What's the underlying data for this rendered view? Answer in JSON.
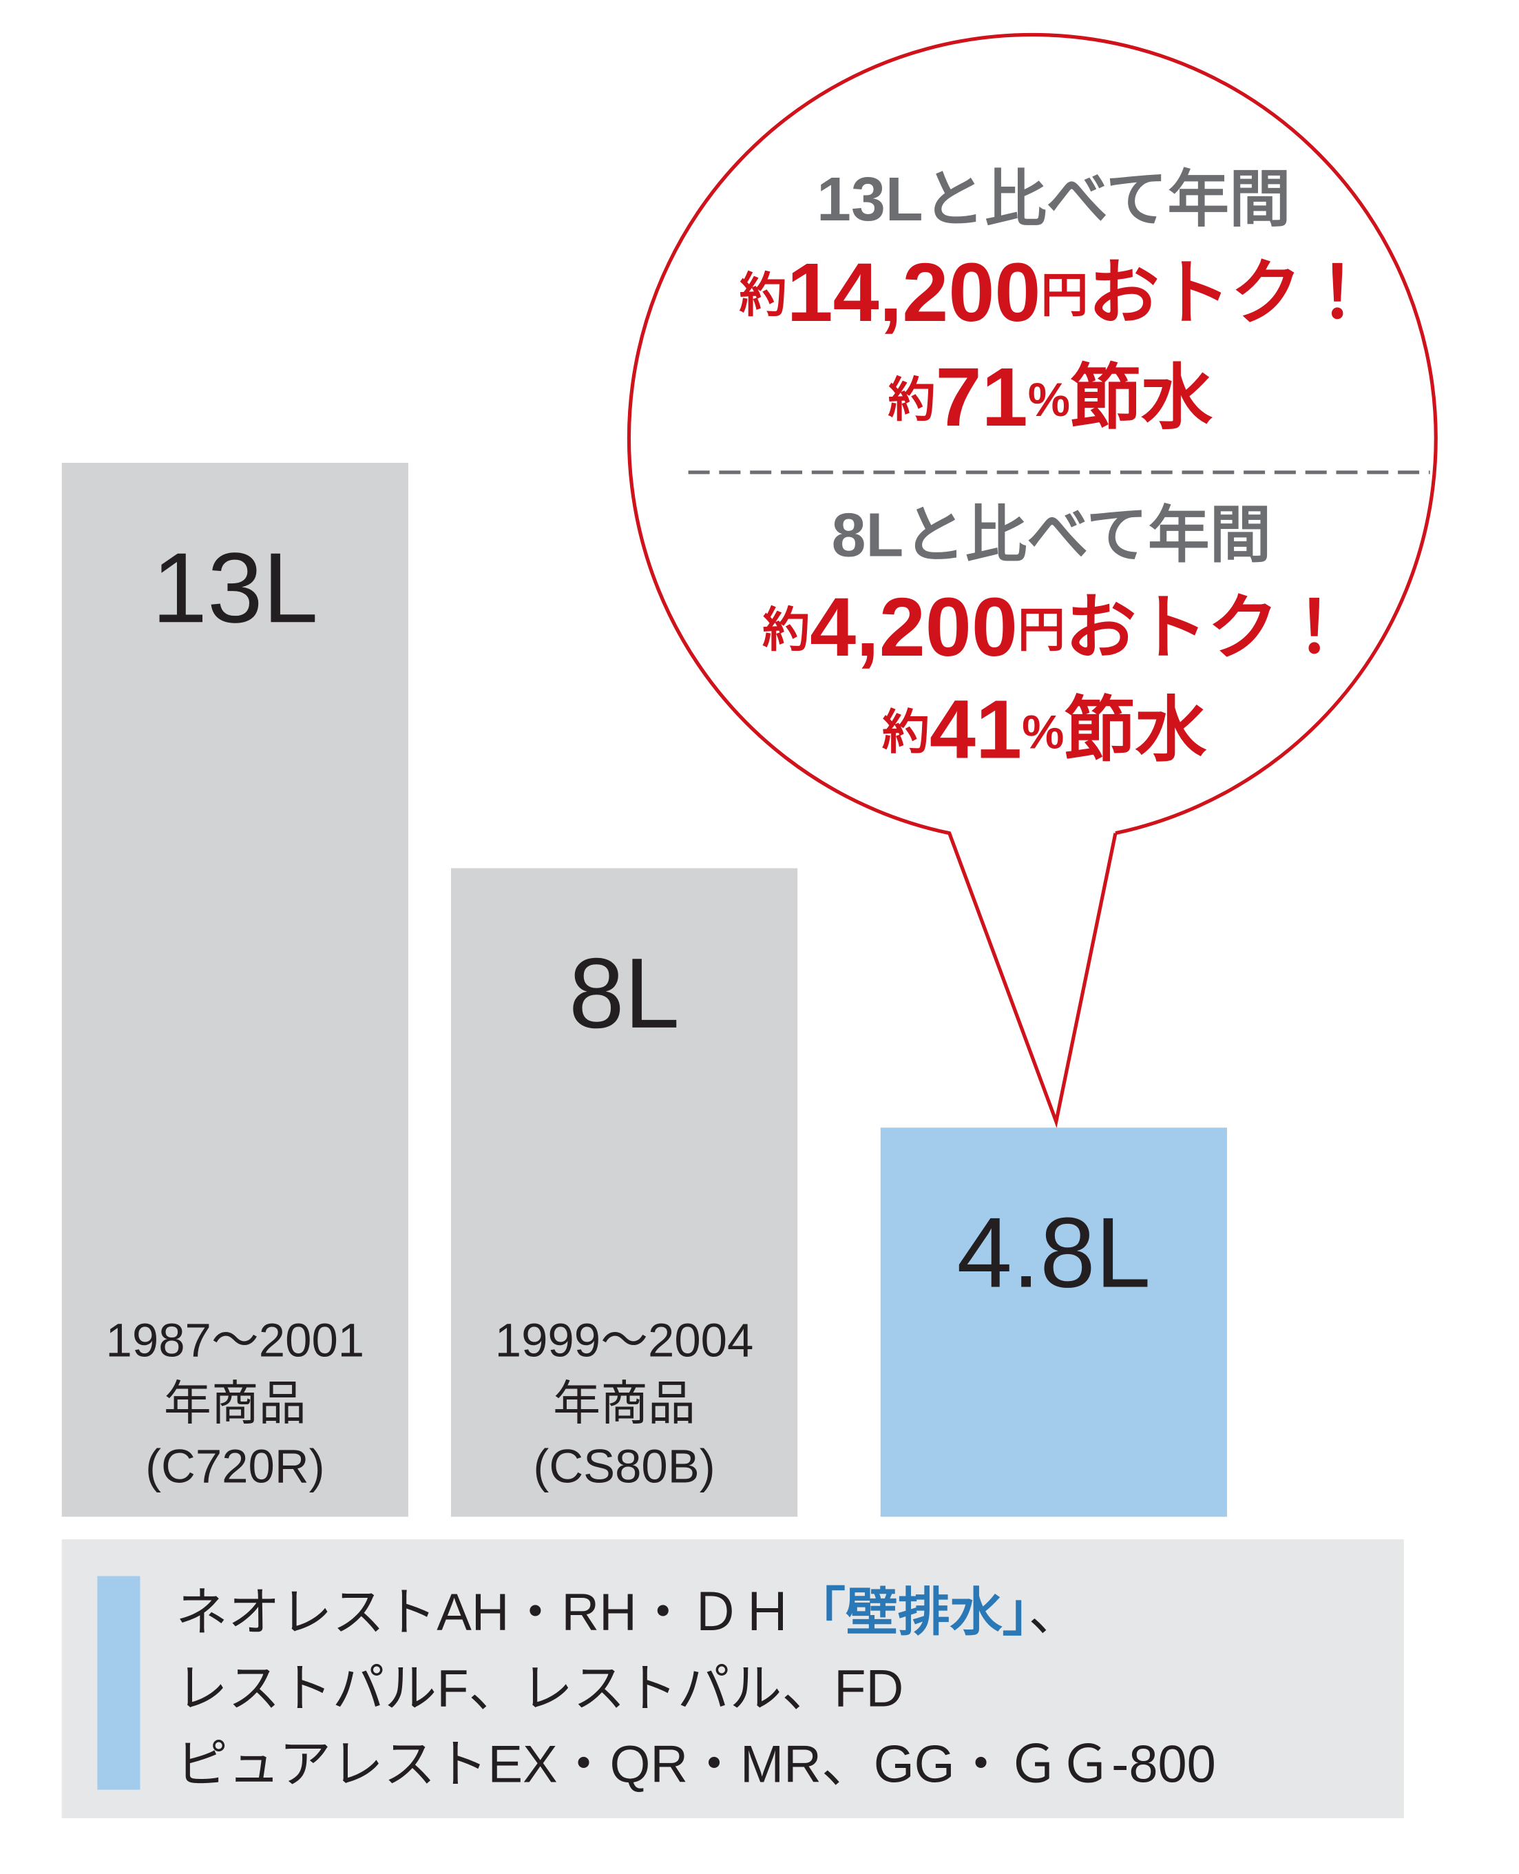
{
  "chart_data": {
    "type": "bar",
    "categories": [
      "1987～2001\n年商品\n(C720R)",
      "1999～2004\n年商品\n(CS80B)",
      null
    ],
    "values": [
      13,
      8,
      4.8
    ],
    "value_labels": [
      "13L",
      "8L",
      "4.8L"
    ],
    "colors": [
      "#d1d3d4",
      "#d1d3d4",
      "#a3cbeb"
    ]
  },
  "callout": {
    "comparisons": [
      {
        "heading": "13Lと比べて年間",
        "savings": [
          "約",
          "14,200",
          "円",
          "おトク！"
        ],
        "water": [
          "約",
          "71",
          "%",
          "節水"
        ]
      },
      {
        "heading": "8Lと比べて年間",
        "savings": [
          "約",
          "4,200",
          "円",
          "おトク！"
        ],
        "water": [
          "約",
          "41",
          "%",
          "節水"
        ]
      }
    ]
  },
  "legend": {
    "color": "#a3cbeb",
    "lines": [
      [
        "ネオレストAH・RH・ＤＨ",
        "「壁排水」",
        "、"
      ],
      [
        "レストパルF、レストパル、FD"
      ],
      [
        "ピュアレストEX・QR・MR、GG・ＧＧ-800"
      ]
    ]
  }
}
